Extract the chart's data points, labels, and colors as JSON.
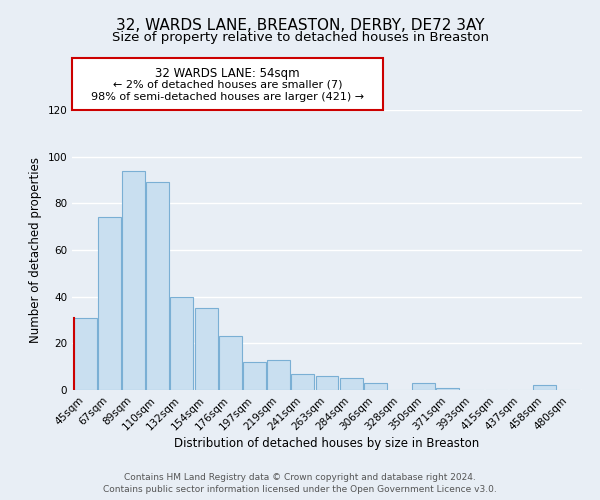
{
  "title": "32, WARDS LANE, BREASTON, DERBY, DE72 3AY",
  "subtitle": "Size of property relative to detached houses in Breaston",
  "xlabel": "Distribution of detached houses by size in Breaston",
  "ylabel": "Number of detached properties",
  "categories": [
    "45sqm",
    "67sqm",
    "89sqm",
    "110sqm",
    "132sqm",
    "154sqm",
    "176sqm",
    "197sqm",
    "219sqm",
    "241sqm",
    "263sqm",
    "284sqm",
    "306sqm",
    "328sqm",
    "350sqm",
    "371sqm",
    "393sqm",
    "415sqm",
    "437sqm",
    "458sqm",
    "480sqm"
  ],
  "values": [
    31,
    74,
    94,
    89,
    40,
    35,
    23,
    12,
    13,
    7,
    6,
    5,
    3,
    0,
    3,
    1,
    0,
    0,
    0,
    2,
    0
  ],
  "bar_color": "#c9dff0",
  "bar_edge_color": "#7aafd4",
  "highlight_edge_color": "#cc0000",
  "highlight_index": 0,
  "ylim": [
    0,
    120
  ],
  "yticks": [
    0,
    20,
    40,
    60,
    80,
    100,
    120
  ],
  "annotation_title": "32 WARDS LANE: 54sqm",
  "annotation_line1": "← 2% of detached houses are smaller (7)",
  "annotation_line2": "98% of semi-detached houses are larger (421) →",
  "annotation_box_color": "#ffffff",
  "annotation_box_edge": "#cc0000",
  "footer_line1": "Contains HM Land Registry data © Crown copyright and database right 2024.",
  "footer_line2": "Contains public sector information licensed under the Open Government Licence v3.0.",
  "background_color": "#e8eef5",
  "grid_color": "#ffffff",
  "title_fontsize": 11,
  "subtitle_fontsize": 9.5,
  "axis_label_fontsize": 8.5,
  "tick_fontsize": 7.5,
  "footer_fontsize": 6.5
}
